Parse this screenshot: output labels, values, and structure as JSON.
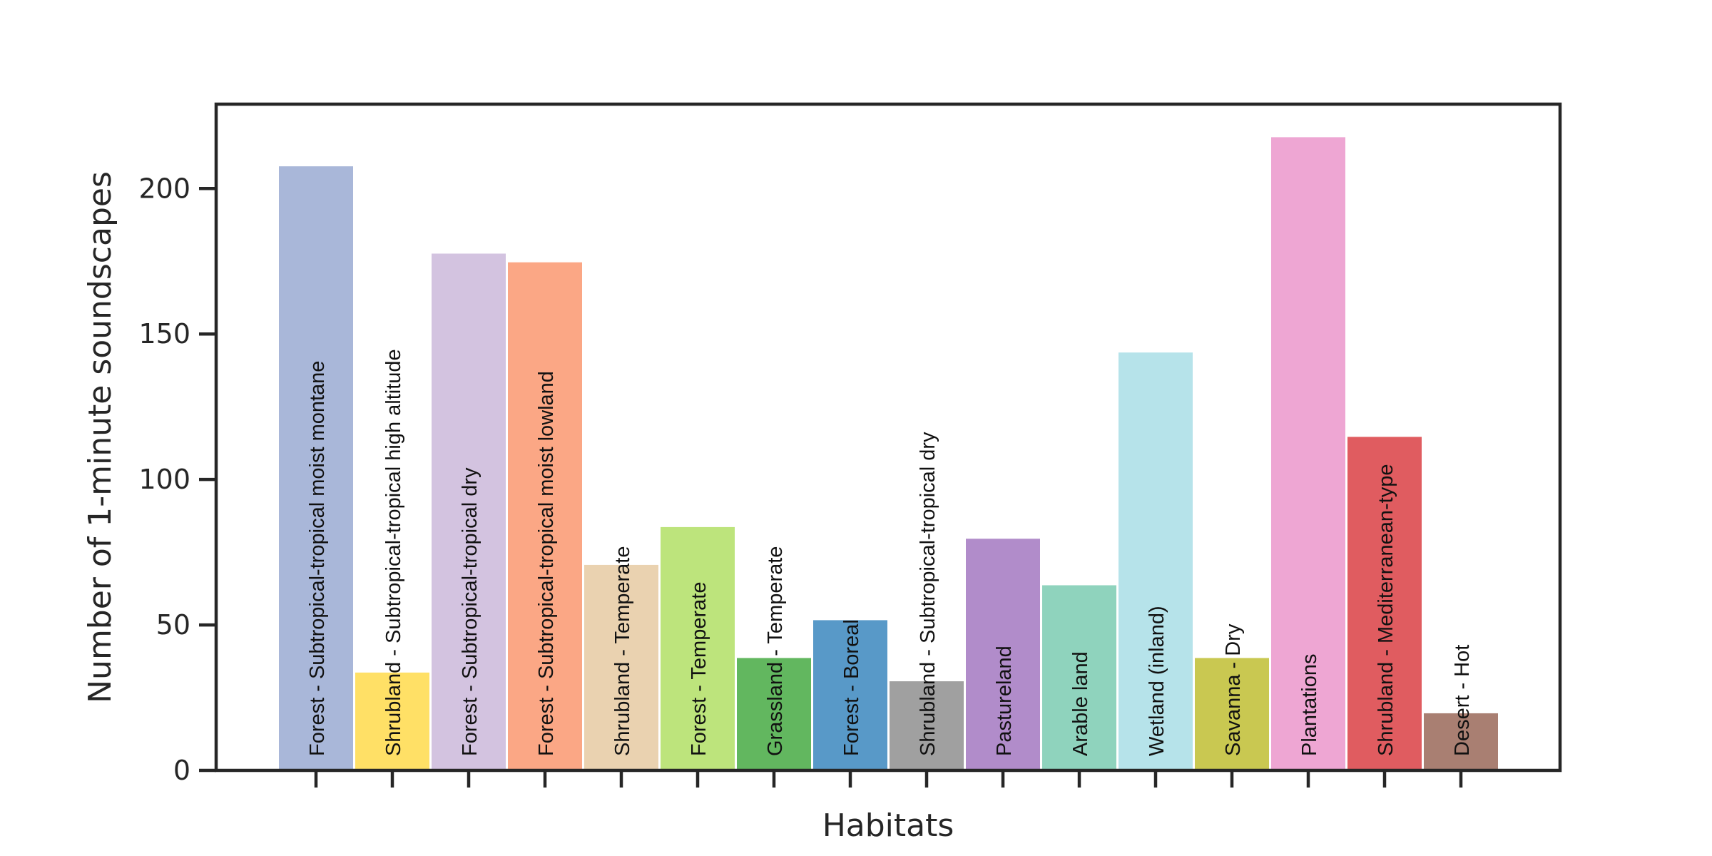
{
  "chart_data": {
    "type": "bar",
    "categories": [
      "Forest - Subtropical-tropical moist montane",
      "Shrubland - Subtropical-tropical high altitude",
      "Forest - Subtropical-tropical dry",
      "Forest - Subtropical-tropical moist lowland",
      "Shrubland - Temperate",
      "Forest - Temperate",
      "Grassland - Temperate",
      "Forest - Boreal",
      "Shrubland - Subtropical-tropical dry",
      "Pastureland",
      "Arable land",
      "Wetland (inland)",
      "Savanna - Dry",
      "Plantations",
      "Shrubland - Mediterranean-type",
      "Desert - Hot"
    ],
    "values": [
      208,
      34,
      178,
      175,
      71,
      84,
      39,
      52,
      31,
      80,
      64,
      144,
      39,
      218,
      115,
      20
    ],
    "colors": [
      "#a9b7d9",
      "#ffe066",
      "#d3c3e0",
      "#fba785",
      "#ead2b0",
      "#bde47c",
      "#62b75f",
      "#5899c8",
      "#a0a0a0",
      "#b18cca",
      "#8fd3bd",
      "#b6e3ea",
      "#c9c851",
      "#eea6d3",
      "#e05c60",
      "#a97f72"
    ],
    "xlabel": "Habitats",
    "ylabel": "Number of 1-minute soundscapes",
    "ylim": [
      0,
      229
    ],
    "yticks": [
      0,
      50,
      100,
      150,
      200
    ],
    "grid": false,
    "legend": "none"
  }
}
